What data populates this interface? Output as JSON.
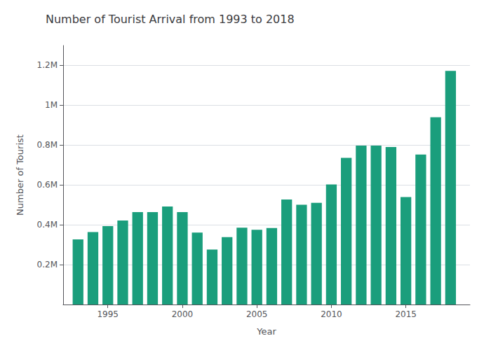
{
  "chart_data": {
    "type": "bar",
    "title": "Number of Tourist Arrival from 1993 to 2018",
    "xlabel": "Year",
    "ylabel": "Number of Tourist",
    "x": [
      1993,
      1994,
      1995,
      1996,
      1997,
      1998,
      1999,
      2000,
      2001,
      2002,
      2003,
      2004,
      2005,
      2006,
      2007,
      2008,
      2009,
      2010,
      2011,
      2012,
      2013,
      2014,
      2015,
      2016,
      2017,
      2018
    ],
    "values": [
      326531,
      363395,
      393613,
      421857,
      463684,
      463684,
      491504,
      463925,
      361237,
      275468,
      338132,
      385297,
      375398,
      383926,
      526705,
      500277,
      509956,
      602867,
      736215,
      797616,
      797616,
      790118,
      538970,
      753002,
      940218,
      1173072
    ],
    "color": "#1a9e7c",
    "xlim": [
      1992.0,
      2019.3
    ],
    "xticks": [
      1995,
      2000,
      2005,
      2010,
      2015
    ],
    "ylim": [
      0,
      1300000
    ],
    "yticks": [
      {
        "value": 200000,
        "label": "0.2M"
      },
      {
        "value": 400000,
        "label": "0.4M"
      },
      {
        "value": 600000,
        "label": "0.6M"
      },
      {
        "value": 800000,
        "label": "0.8M"
      },
      {
        "value": 1000000,
        "label": "1M"
      },
      {
        "value": 1200000,
        "label": "1.2M"
      }
    ],
    "grid": true
  }
}
